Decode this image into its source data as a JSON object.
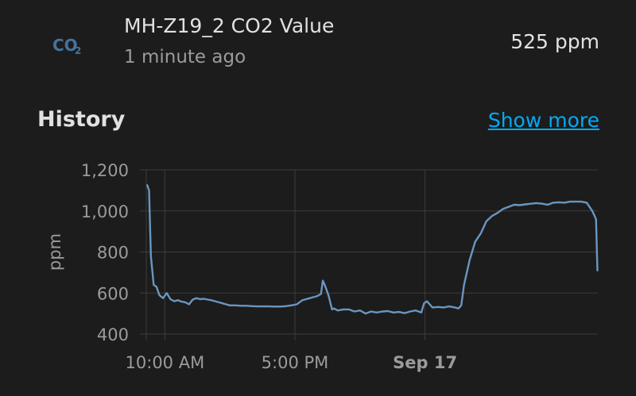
{
  "entity": {
    "icon": "co2-icon",
    "name": "MH-Z19_2 CO2 Value",
    "last_changed": "1 minute ago",
    "state": "525 ppm"
  },
  "history": {
    "title": "History",
    "show_more": "Show more"
  },
  "colors": {
    "background": "#1c1c1c",
    "line": "#6a96c0",
    "icon": "#44739e",
    "link": "#03a9f4",
    "grid": "#3d3d3d",
    "axis_text": "#9b9b9b"
  },
  "chart_data": {
    "type": "line",
    "xlabel": "",
    "ylabel": "ppm",
    "ylim": [
      400,
      1200
    ],
    "yticks": [
      400,
      600,
      800,
      1000,
      1200
    ],
    "ytick_labels": [
      "400",
      "600",
      "800",
      "1,000",
      "1,200"
    ],
    "xlim": [
      9,
      33.3
    ],
    "xticks": [
      {
        "x": 10,
        "label": "10:00 AM",
        "bold": false
      },
      {
        "x": 17,
        "label": "5:00 PM",
        "bold": false
      },
      {
        "x": 24,
        "label": "Sep 17",
        "bold": true
      }
    ],
    "grid": true,
    "series": [
      {
        "x": [
          9.05,
          9.15,
          9.25,
          9.4,
          9.55,
          9.7,
          9.9,
          10.1,
          10.3,
          10.5,
          10.7,
          10.9,
          11.1,
          11.3,
          11.5,
          11.7,
          11.9,
          12.1,
          12.3,
          12.5,
          12.7,
          12.9,
          13.1,
          13.3,
          13.5,
          13.8,
          14.1,
          14.4,
          14.7,
          15.0,
          15.3,
          15.6,
          15.9,
          16.2,
          16.5,
          16.8,
          17.1,
          17.4,
          17.6,
          17.8,
          18.0,
          18.2,
          18.4,
          18.5,
          18.6,
          18.8,
          19.0,
          19.1,
          19.3,
          19.6,
          19.9,
          20.2,
          20.5,
          20.8,
          21.1,
          21.4,
          21.7,
          22.0,
          22.3,
          22.6,
          22.9,
          23.2,
          23.5,
          23.8,
          23.95,
          24.1,
          24.4,
          24.7,
          25.0,
          25.3,
          25.6,
          25.8,
          25.95,
          26.1,
          26.4,
          26.7,
          27.0,
          27.3,
          27.6,
          27.9,
          28.2,
          28.5,
          28.8,
          29.1,
          29.4,
          29.7,
          30.0,
          30.3,
          30.6,
          30.9,
          31.2,
          31.5,
          31.8,
          32.1,
          32.4,
          32.7,
          33.0,
          33.2,
          33.28
        ],
        "y": [
          1125,
          1100,
          780,
          640,
          630,
          590,
          575,
          600,
          570,
          560,
          565,
          558,
          555,
          545,
          568,
          575,
          570,
          572,
          568,
          565,
          560,
          555,
          550,
          545,
          540,
          540,
          538,
          538,
          536,
          535,
          535,
          535,
          534,
          534,
          536,
          540,
          545,
          565,
          570,
          575,
          580,
          585,
          595,
          660,
          640,
          590,
          520,
          525,
          515,
          520,
          520,
          510,
          515,
          500,
          510,
          505,
          510,
          512,
          505,
          508,
          502,
          510,
          515,
          505,
          550,
          560,
          530,
          532,
          530,
          535,
          530,
          525,
          540,
          640,
          760,
          850,
          890,
          950,
          975,
          990,
          1010,
          1020,
          1030,
          1028,
          1032,
          1035,
          1038,
          1035,
          1030,
          1040,
          1042,
          1040,
          1045,
          1045,
          1045,
          1040,
          1000,
          960,
          710
        ]
      }
    ]
  }
}
